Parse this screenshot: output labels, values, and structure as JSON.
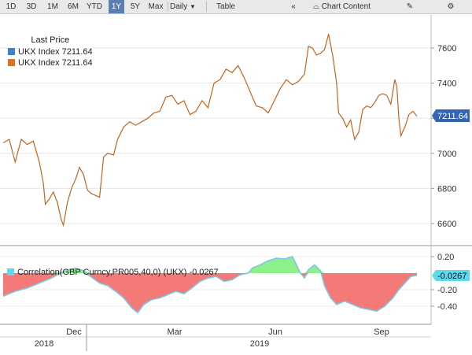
{
  "toolbar": {
    "ranges": [
      "1D",
      "3D",
      "1M",
      "6M",
      "YTD",
      "1Y",
      "5Y",
      "Max"
    ],
    "selected_range": "1Y",
    "frequency": "Daily",
    "table_label": "Table",
    "chart_content_label": "Chart Content"
  },
  "legend": {
    "title": "Last Price",
    "items": [
      {
        "label": "UKX Index 7211.64",
        "color": "#3f7fd0"
      },
      {
        "label": "UKX Index 7211.64",
        "color": "#e0701a"
      }
    ]
  },
  "correlation_legend": {
    "label": "Correlation(GBP Curncy,PR005,40,0) (UKX) -0.0267"
  },
  "colors": {
    "price_line": "#c0651d",
    "corr_positive": "#8ef08a",
    "corr_negative": "#f47a78",
    "corr_line": "#7ec7e3",
    "last_price_tag": "#3465b5",
    "corr_tag": "#5ed9ea"
  },
  "chart_data": [
    {
      "type": "line",
      "series": [
        {
          "name": "UKX Index",
          "points": [
            [
              0,
              7060
            ],
            [
              0.03,
              7080
            ],
            [
              0.06,
              6950
            ],
            [
              0.09,
              7080
            ],
            [
              0.12,
              7050
            ],
            [
              0.15,
              7070
            ],
            [
              0.18,
              6950
            ],
            [
              0.2,
              6830
            ],
            [
              0.21,
              6710
            ],
            [
              0.23,
              6740
            ],
            [
              0.25,
              6780
            ],
            [
              0.27,
              6720
            ],
            [
              0.29,
              6620
            ],
            [
              0.3,
              6590
            ],
            [
              0.32,
              6720
            ],
            [
              0.34,
              6800
            ],
            [
              0.36,
              6850
            ],
            [
              0.38,
              6920
            ],
            [
              0.4,
              6880
            ],
            [
              0.42,
              6790
            ],
            [
              0.44,
              6770
            ],
            [
              0.46,
              6760
            ],
            [
              0.48,
              6750
            ],
            [
              0.5,
              6980
            ],
            [
              0.52,
              7000
            ],
            [
              0.55,
              6990
            ],
            [
              0.57,
              7080
            ],
            [
              0.6,
              7150
            ],
            [
              0.63,
              7180
            ],
            [
              0.66,
              7160
            ],
            [
              0.69,
              7180
            ],
            [
              0.72,
              7200
            ],
            [
              0.75,
              7230
            ],
            [
              0.78,
              7240
            ],
            [
              0.81,
              7320
            ],
            [
              0.84,
              7330
            ],
            [
              0.87,
              7280
            ],
            [
              0.9,
              7300
            ],
            [
              0.93,
              7220
            ],
            [
              0.96,
              7240
            ],
            [
              0.99,
              7300
            ],
            [
              1.02,
              7260
            ],
            [
              1.05,
              7400
            ],
            [
              1.08,
              7420
            ],
            [
              1.11,
              7480
            ],
            [
              1.14,
              7460
            ],
            [
              1.17,
              7500
            ],
            [
              1.2,
              7430
            ],
            [
              1.23,
              7350
            ],
            [
              1.26,
              7270
            ],
            [
              1.29,
              7260
            ],
            [
              1.32,
              7230
            ],
            [
              1.35,
              7300
            ],
            [
              1.38,
              7370
            ],
            [
              1.41,
              7420
            ],
            [
              1.44,
              7390
            ],
            [
              1.47,
              7410
            ],
            [
              1.5,
              7450
            ],
            [
              1.52,
              7610
            ],
            [
              1.54,
              7600
            ],
            [
              1.56,
              7560
            ],
            [
              1.58,
              7570
            ],
            [
              1.6,
              7590
            ],
            [
              1.62,
              7680
            ],
            [
              1.64,
              7560
            ],
            [
              1.66,
              7400
            ],
            [
              1.67,
              7230
            ],
            [
              1.69,
              7200
            ],
            [
              1.71,
              7150
            ],
            [
              1.73,
              7190
            ],
            [
              1.75,
              7080
            ],
            [
              1.77,
              7120
            ],
            [
              1.79,
              7250
            ],
            [
              1.81,
              7270
            ],
            [
              1.83,
              7260
            ],
            [
              1.85,
              7290
            ],
            [
              1.87,
              7330
            ],
            [
              1.89,
              7340
            ],
            [
              1.91,
              7330
            ],
            [
              1.93,
              7280
            ],
            [
              1.95,
              7420
            ],
            [
              1.96,
              7380
            ],
            [
              1.97,
              7200
            ],
            [
              1.98,
              7100
            ],
            [
              2.0,
              7150
            ],
            [
              2.02,
              7220
            ],
            [
              2.04,
              7240
            ],
            [
              2.06,
              7211.64
            ]
          ],
          "values_note_units": "index points"
        }
      ],
      "x": {
        "tick_labels": [
          "Dec",
          "Mar",
          "Jun",
          "Sep"
        ],
        "year_labels": [
          "2018",
          "2019"
        ]
      },
      "y": {
        "tick_labels": [
          "6600",
          "6800",
          "7000",
          "7200",
          "7400",
          "7600"
        ]
      },
      "last_value": "7211.64"
    },
    {
      "type": "area",
      "series": [
        {
          "name": "Correlation(GBP Curncy,PR005,40,0) (UKX)",
          "points": [
            [
              0,
              -0.28
            ],
            [
              0.06,
              -0.22
            ],
            [
              0.12,
              -0.18
            ],
            [
              0.18,
              -0.12
            ],
            [
              0.24,
              -0.06
            ],
            [
              0.3,
              0.02
            ],
            [
              0.36,
              0.06
            ],
            [
              0.4,
              0.03
            ],
            [
              0.44,
              -0.05
            ],
            [
              0.48,
              -0.12
            ],
            [
              0.52,
              -0.15
            ],
            [
              0.56,
              -0.22
            ],
            [
              0.6,
              -0.3
            ],
            [
              0.64,
              -0.42
            ],
            [
              0.67,
              -0.48
            ],
            [
              0.7,
              -0.38
            ],
            [
              0.74,
              -0.32
            ],
            [
              0.78,
              -0.3
            ],
            [
              0.82,
              -0.26
            ],
            [
              0.86,
              -0.22
            ],
            [
              0.9,
              -0.25
            ],
            [
              0.94,
              -0.18
            ],
            [
              0.98,
              -0.1
            ],
            [
              1.02,
              -0.06
            ],
            [
              1.06,
              -0.04
            ],
            [
              1.1,
              -0.1
            ],
            [
              1.14,
              -0.08
            ],
            [
              1.18,
              -0.02
            ],
            [
              1.22,
              0.0
            ],
            [
              1.24,
              0.06
            ],
            [
              1.28,
              0.1
            ],
            [
              1.32,
              0.15
            ],
            [
              1.36,
              0.18
            ],
            [
              1.4,
              0.17
            ],
            [
              1.44,
              0.2
            ],
            [
              1.46,
              0.1
            ],
            [
              1.48,
              0.0
            ],
            [
              1.5,
              -0.06
            ],
            [
              1.52,
              0.04
            ],
            [
              1.55,
              0.1
            ],
            [
              1.58,
              0.03
            ],
            [
              1.6,
              -0.15
            ],
            [
              1.63,
              -0.3
            ],
            [
              1.66,
              -0.38
            ],
            [
              1.7,
              -0.34
            ],
            [
              1.74,
              -0.38
            ],
            [
              1.78,
              -0.42
            ],
            [
              1.82,
              -0.44
            ],
            [
              1.86,
              -0.46
            ],
            [
              1.9,
              -0.4
            ],
            [
              1.94,
              -0.3
            ],
            [
              1.97,
              -0.2
            ],
            [
              2.0,
              -0.12
            ],
            [
              2.03,
              -0.04
            ],
            [
              2.06,
              -0.0267
            ]
          ]
        }
      ],
      "y": {
        "tick_labels": [
          "0.20",
          "-0.20",
          "-0.40"
        ]
      },
      "last_value": "-0.0267"
    }
  ]
}
